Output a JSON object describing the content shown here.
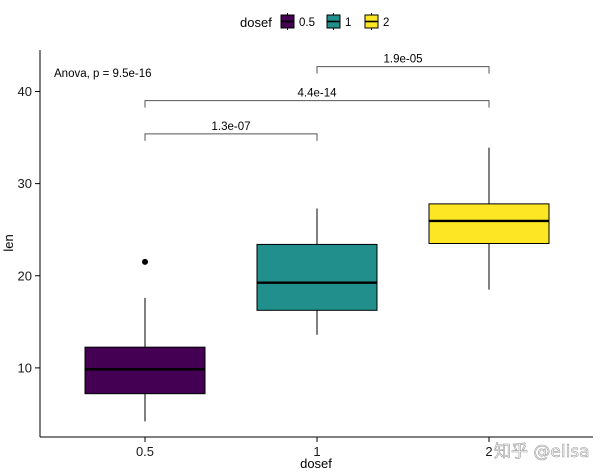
{
  "chart_data": {
    "type": "boxplot",
    "xlabel": "dosef",
    "ylabel": "len",
    "ylim": [
      2.5,
      44.5
    ],
    "yticks": [
      10,
      20,
      30,
      40
    ],
    "categories": [
      "0.5",
      "1",
      "2"
    ],
    "legend": {
      "title": "dosef",
      "position": "top",
      "entries": [
        "0.5",
        "1",
        "2"
      ]
    },
    "colors": [
      "#440154",
      "#21908C",
      "#FDE725"
    ],
    "boxes": [
      {
        "category": "0.5",
        "min": 4.2,
        "q1": 7.2,
        "median": 9.85,
        "q3": 12.25,
        "max": 17.6,
        "outliers": [
          21.5
        ]
      },
      {
        "category": "1",
        "min": 13.6,
        "q1": 16.25,
        "median": 19.25,
        "q3": 23.4,
        "max": 27.3,
        "outliers": []
      },
      {
        "category": "2",
        "min": 18.5,
        "q1": 23.5,
        "median": 25.95,
        "q3": 27.8,
        "max": 33.9,
        "outliers": []
      }
    ],
    "annotation": "Anova, p = 9.5e-16",
    "comparisons": [
      {
        "from": "0.5",
        "to": "1",
        "label": "1.3e-07",
        "y": 35.4
      },
      {
        "from": "0.5",
        "to": "2",
        "label": "4.4e-14",
        "y": 39.0
      },
      {
        "from": "1",
        "to": "2",
        "label": "1.9e-05",
        "y": 42.7
      }
    ],
    "grid": false
  },
  "watermark": "知乎 @elisa"
}
